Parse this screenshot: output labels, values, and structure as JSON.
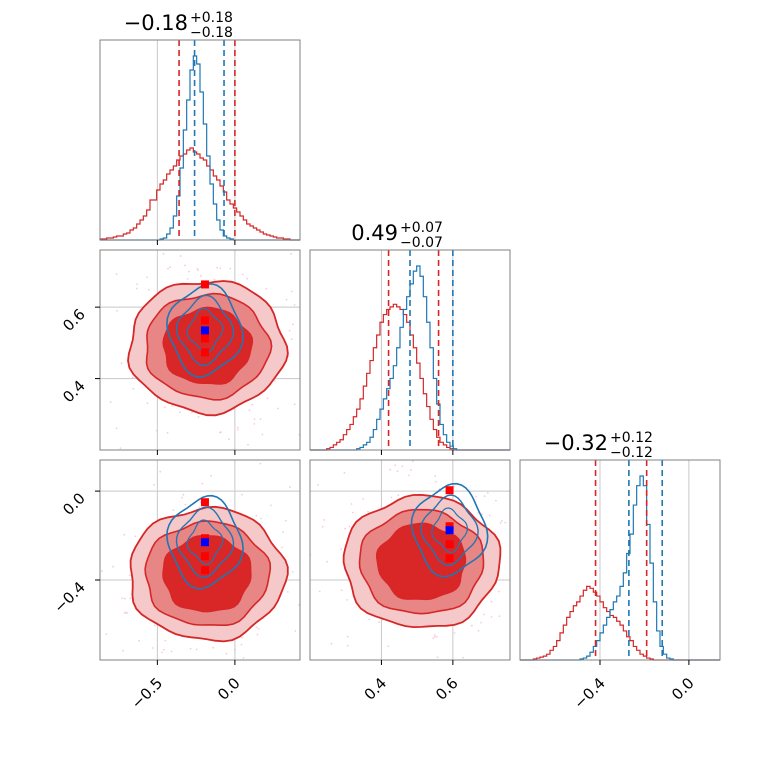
{
  "colors": {
    "red": "#d62728",
    "blue": "#1f77b4",
    "red_fill_outer": "#f5c9c9",
    "red_fill_mid": "#e88585",
    "red_fill_inner": "#d92626",
    "grid": "#c8c8c8",
    "marker_red": "#ff0000",
    "marker_blue": "#0000ff"
  },
  "chart_data": {
    "type": "corner",
    "grid": true,
    "parameters": [
      {
        "range": [
          -0.87,
          0.42
        ],
        "ticks": [
          -0.5,
          0.0
        ],
        "tick_labels": [
          "−0.5",
          "0.0"
        ],
        "title": {
          "median": "−0.18",
          "plus": "+0.18",
          "minus": "−0.18"
        },
        "quantiles_red": [
          -0.36,
          0.0
        ],
        "quantiles_blue": [
          -0.26,
          -0.07
        ],
        "hist_red": [
          0.005,
          0.005,
          0.01,
          0.01,
          0.015,
          0.02,
          0.02,
          0.03,
          0.035,
          0.05,
          0.06,
          0.08,
          0.1,
          0.12,
          0.15,
          0.2,
          0.2,
          0.25,
          0.28,
          0.3,
          0.33,
          0.35,
          0.37,
          0.4,
          0.42,
          0.43,
          0.45,
          0.46,
          0.44,
          0.43,
          0.41,
          0.4,
          0.37,
          0.35,
          0.32,
          0.3,
          0.27,
          0.24,
          0.2,
          0.18,
          0.16,
          0.14,
          0.12,
          0.1,
          0.08,
          0.07,
          0.06,
          0.05,
          0.04,
          0.03,
          0.025,
          0.02,
          0.015,
          0.01,
          0.01,
          0.005,
          0.005,
          0.0,
          0.0,
          0.0
        ],
        "hist_blue": [
          0,
          0,
          0,
          0,
          0,
          0,
          0,
          0,
          0,
          0,
          0,
          0,
          0,
          0,
          0,
          0,
          0,
          0,
          0.005,
          0.01,
          0.03,
          0.06,
          0.12,
          0.22,
          0.36,
          0.55,
          0.7,
          0.85,
          0.92,
          0.88,
          0.74,
          0.58,
          0.42,
          0.28,
          0.18,
          0.1,
          0.05,
          0.02,
          0.01,
          0.005,
          0,
          0,
          0,
          0,
          0,
          0,
          0,
          0,
          0,
          0,
          0,
          0,
          0,
          0,
          0,
          0,
          0,
          0,
          0,
          0
        ],
        "marker_red": -0.18,
        "marker_blue": -0.17
      },
      {
        "range": [
          0.2,
          0.76
        ],
        "ticks": [
          0.4,
          0.6
        ],
        "tick_labels": [
          "0.4",
          "0.6"
        ],
        "title": {
          "median": "0.49",
          "plus": "+0.07",
          "minus": "−0.07"
        },
        "quantiles_red": [
          0.42,
          0.56
        ],
        "quantiles_blue": [
          0.48,
          0.6
        ],
        "hist_red": [
          0,
          0,
          0,
          0,
          0,
          0.005,
          0.01,
          0.02,
          0.03,
          0.04,
          0.06,
          0.08,
          0.1,
          0.13,
          0.16,
          0.2,
          0.25,
          0.3,
          0.35,
          0.4,
          0.45,
          0.5,
          0.53,
          0.55,
          0.56,
          0.57,
          0.56,
          0.55,
          0.53,
          0.5,
          0.45,
          0.4,
          0.34,
          0.28,
          0.22,
          0.17,
          0.12,
          0.08,
          0.05,
          0.03,
          0.02,
          0.01,
          0.005,
          0,
          0,
          0,
          0,
          0,
          0,
          0,
          0,
          0,
          0,
          0,
          0,
          0,
          0,
          0,
          0,
          0
        ],
        "hist_blue": [
          0,
          0,
          0,
          0,
          0,
          0,
          0,
          0,
          0,
          0,
          0,
          0,
          0,
          0,
          0.005,
          0.01,
          0.02,
          0.03,
          0.05,
          0.08,
          0.12,
          0.16,
          0.2,
          0.24,
          0.28,
          0.33,
          0.4,
          0.48,
          0.55,
          0.6,
          0.65,
          0.7,
          0.72,
          0.68,
          0.6,
          0.5,
          0.4,
          0.28,
          0.18,
          0.1,
          0.06,
          0.03,
          0.015,
          0.005,
          0,
          0,
          0,
          0,
          0,
          0,
          0,
          0,
          0,
          0,
          0,
          0,
          0,
          0,
          0,
          0
        ],
        "marker_red_1": 0.67,
        "marker_red_2": 0.47,
        "marker_blue": 0.54
      },
      {
        "range": [
          -0.76,
          0.14
        ],
        "ticks": [
          -0.4,
          0.0
        ],
        "tick_labels": [
          "−0.4",
          "0.0"
        ],
        "title": {
          "median": "−0.32",
          "plus": "+0.12",
          "minus": "−0.12"
        },
        "quantiles_red": [
          -0.42,
          -0.19
        ],
        "quantiles_blue": [
          -0.27,
          -0.12
        ],
        "hist_red": [
          0,
          0,
          0,
          0,
          0.005,
          0.01,
          0.015,
          0.02,
          0.03,
          0.05,
          0.07,
          0.1,
          0.14,
          0.18,
          0.22,
          0.25,
          0.28,
          0.3,
          0.33,
          0.36,
          0.38,
          0.37,
          0.35,
          0.33,
          0.3,
          0.27,
          0.25,
          0.23,
          0.22,
          0.2,
          0.18,
          0.15,
          0.12,
          0.1,
          0.07,
          0.05,
          0.03,
          0.02,
          0.01,
          0.005,
          0,
          0,
          0,
          0,
          0,
          0,
          0,
          0,
          0,
          0,
          0,
          0,
          0,
          0,
          0,
          0,
          0,
          0,
          0,
          0
        ],
        "hist_blue": [
          0,
          0,
          0,
          0,
          0,
          0,
          0,
          0,
          0,
          0,
          0,
          0,
          0,
          0,
          0,
          0,
          0,
          0,
          0.005,
          0.01,
          0.02,
          0.04,
          0.07,
          0.1,
          0.14,
          0.18,
          0.22,
          0.26,
          0.3,
          0.33,
          0.38,
          0.45,
          0.55,
          0.65,
          0.8,
          0.9,
          0.95,
          0.9,
          0.7,
          0.5,
          0.3,
          0.15,
          0.07,
          0.03,
          0.01,
          0.005,
          0,
          0,
          0,
          0,
          0,
          0,
          0,
          0,
          0,
          0,
          0,
          0,
          0,
          0
        ],
        "marker_red": -0.3,
        "marker_blue": -0.2
      }
    ]
  }
}
